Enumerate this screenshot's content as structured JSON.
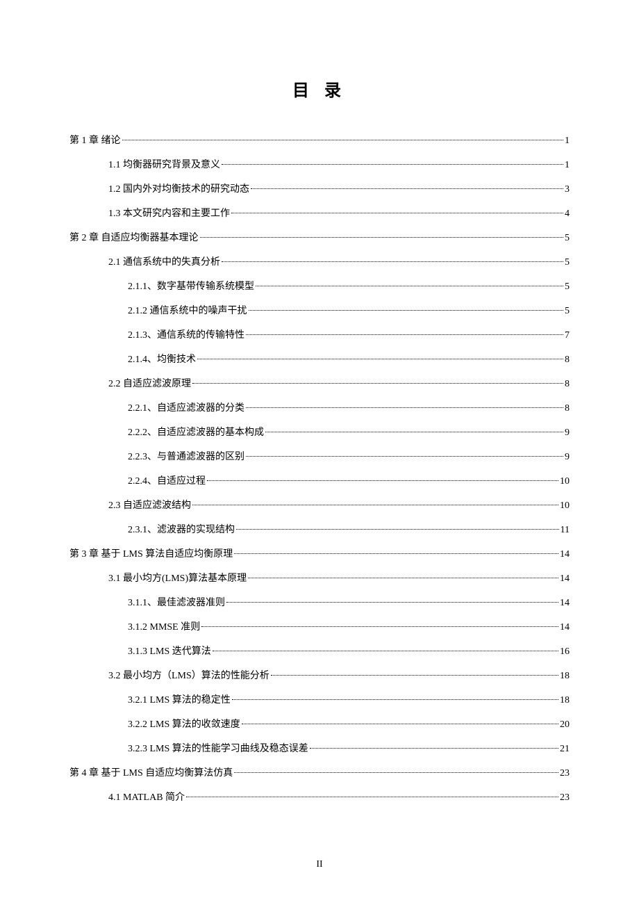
{
  "title": "目 录",
  "page_footer": "II",
  "entries": [
    {
      "level": 0,
      "label": "第 1 章 绪论",
      "page": "1"
    },
    {
      "level": 1,
      "label": "1.1 均衡器研究背景及意义",
      "page": "1"
    },
    {
      "level": 1,
      "label": "1.2 国内外对均衡技术的研究动态",
      "page": "3"
    },
    {
      "level": 1,
      "label": "1.3 本文研究内容和主要工作",
      "page": "4"
    },
    {
      "level": 0,
      "label": "第 2 章 自适应均衡器基本理论",
      "page": "5"
    },
    {
      "level": 1,
      "label": "2.1 通信系统中的失真分析",
      "page": "5"
    },
    {
      "level": 2,
      "label": "2.1.1、数字基带传输系统模型",
      "page": "5"
    },
    {
      "level": 2,
      "label": "2.1.2 通信系统中的噪声干扰",
      "page": "5"
    },
    {
      "level": 2,
      "label": "2.1.3、通信系统的传输特性",
      "page": "7"
    },
    {
      "level": 2,
      "label": "2.1.4、均衡技术",
      "page": "8"
    },
    {
      "level": 1,
      "label": "2.2 自适应滤波原理",
      "page": "8"
    },
    {
      "level": 2,
      "label": "2.2.1、自适应滤波器的分类",
      "page": "8"
    },
    {
      "level": 2,
      "label": "2.2.2、自适应滤波器的基本构成",
      "page": "9"
    },
    {
      "level": 2,
      "label": "2.2.3、与普通滤波器的区别",
      "page": "9"
    },
    {
      "level": 2,
      "label": "2.2.4、自适应过程",
      "page": "10"
    },
    {
      "level": 1,
      "label": "2.3 自适应滤波结构",
      "page": "10"
    },
    {
      "level": 2,
      "label": "2.3.1、滤波器的实现结构",
      "page": "11"
    },
    {
      "level": 0,
      "label": "第 3 章 基于 LMS 算法自适应均衡原理",
      "page": "14"
    },
    {
      "level": 1,
      "label": "3.1 最小均方(LMS)算法基本原理",
      "page": "14"
    },
    {
      "level": 2,
      "label": "3.1.1、最佳滤波器准则",
      "page": "14"
    },
    {
      "level": 2,
      "label": "3.1.2 MMSE 准则",
      "page": "14"
    },
    {
      "level": 2,
      "label": "3.1.3 LMS 迭代算法",
      "page": "16"
    },
    {
      "level": 1,
      "label": "3.2 最小均方（LMS）算法的性能分析",
      "page": "18"
    },
    {
      "level": 2,
      "label": "3.2.1 LMS 算法的稳定性",
      "page": "18"
    },
    {
      "level": 2,
      "label": "3.2.2 LMS 算法的收敛速度",
      "page": "20"
    },
    {
      "level": 2,
      "label": "3.2.3 LMS 算法的性能学习曲线及稳态误差",
      "page": "21"
    },
    {
      "level": 0,
      "label": "第 4 章 基于 LMS 自适应均衡算法仿真",
      "page": "23"
    },
    {
      "level": 1,
      "label": "4.1 MATLAB 简介",
      "page": "23"
    }
  ]
}
